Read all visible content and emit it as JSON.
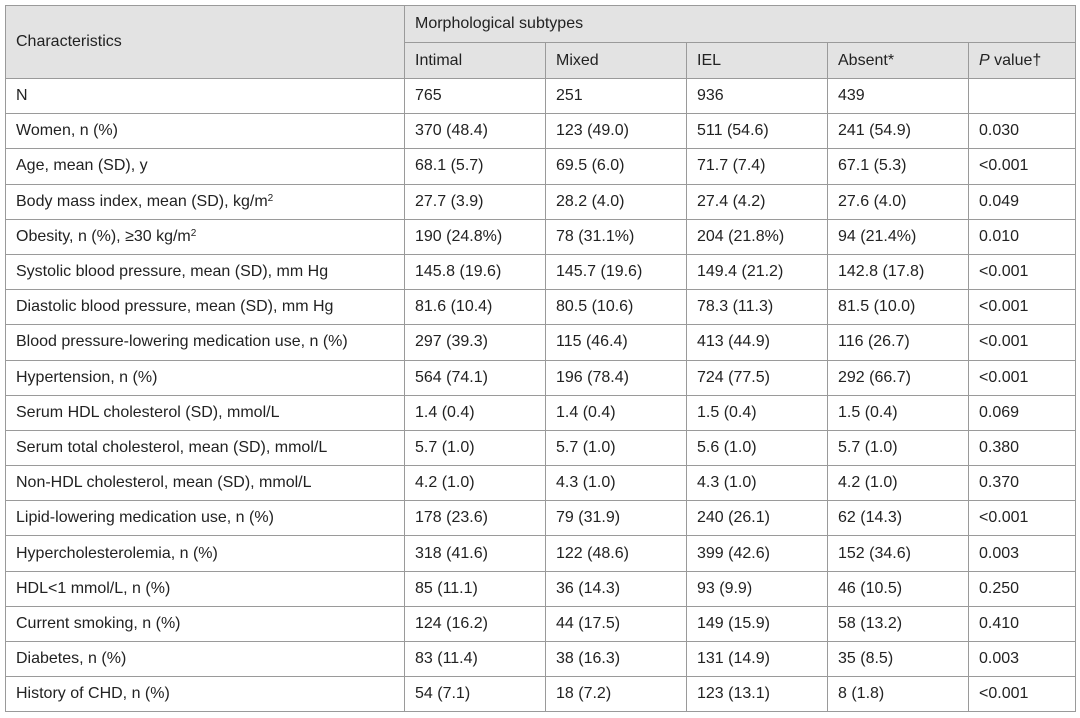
{
  "table": {
    "characteristics_header": "Characteristics",
    "group_header": "Morphological subtypes",
    "columns": {
      "intimal": "Intimal",
      "mixed": "Mixed",
      "iel": "IEL",
      "absent": "Absent*",
      "p_value_p": "P",
      "p_value_rest": " value†"
    },
    "rows": [
      {
        "label": "N",
        "label_sup": "",
        "intimal": "765",
        "mixed": "251",
        "iel": "936",
        "absent": "439",
        "p": ""
      },
      {
        "label": "Women, n (%)",
        "label_sup": "",
        "intimal": "370 (48.4)",
        "mixed": "123 (49.0)",
        "iel": "511 (54.6)",
        "absent": "241 (54.9)",
        "p": "0.030"
      },
      {
        "label": "Age, mean (SD), y",
        "label_sup": "",
        "intimal": "68.1 (5.7)",
        "mixed": "69.5 (6.0)",
        "iel": "71.7 (7.4)",
        "absent": "67.1 (5.3)",
        "p": "<0.001"
      },
      {
        "label": "Body mass index, mean (SD), kg/m",
        "label_sup": "2",
        "intimal": "27.7 (3.9)",
        "mixed": "28.2 (4.0)",
        "iel": "27.4 (4.2)",
        "absent": "27.6 (4.0)",
        "p": "0.049"
      },
      {
        "label": "Obesity, n (%), ≥30 kg/m",
        "label_sup": "2",
        "intimal": "190 (24.8%)",
        "mixed": "78 (31.1%)",
        "iel": "204 (21.8%)",
        "absent": "94 (21.4%)",
        "p": "0.010"
      },
      {
        "label": "Systolic blood pressure, mean (SD), mm Hg",
        "label_sup": "",
        "intimal": "145.8 (19.6)",
        "mixed": "145.7 (19.6)",
        "iel": "149.4 (21.2)",
        "absent": "142.8 (17.8)",
        "p": "<0.001"
      },
      {
        "label": "Diastolic blood pressure, mean (SD), mm Hg",
        "label_sup": "",
        "intimal": "81.6 (10.4)",
        "mixed": "80.5 (10.6)",
        "iel": "78.3 (11.3)",
        "absent": "81.5 (10.0)",
        "p": "<0.001"
      },
      {
        "label": "Blood pressure-lowering medication use, n (%)",
        "label_sup": "",
        "intimal": "297 (39.3)",
        "mixed": "115 (46.4)",
        "iel": "413 (44.9)",
        "absent": "116 (26.7)",
        "p": "<0.001"
      },
      {
        "label": "Hypertension, n (%)",
        "label_sup": "",
        "intimal": "564 (74.1)",
        "mixed": "196 (78.4)",
        "iel": "724 (77.5)",
        "absent": "292 (66.7)",
        "p": "<0.001"
      },
      {
        "label": "Serum HDL cholesterol (SD), mmol/L",
        "label_sup": "",
        "intimal": "1.4 (0.4)",
        "mixed": "1.4 (0.4)",
        "iel": "1.5 (0.4)",
        "absent": "1.5 (0.4)",
        "p": "0.069"
      },
      {
        "label": "Serum total cholesterol, mean (SD), mmol/L",
        "label_sup": "",
        "intimal": "5.7 (1.0)",
        "mixed": "5.7 (1.0)",
        "iel": "5.6 (1.0)",
        "absent": "5.7 (1.0)",
        "p": "0.380"
      },
      {
        "label": "Non-HDL cholesterol, mean (SD), mmol/L",
        "label_sup": "",
        "intimal": "4.2 (1.0)",
        "mixed": "4.3 (1.0)",
        "iel": "4.3 (1.0)",
        "absent": "4.2 (1.0)",
        "p": "0.370"
      },
      {
        "label": "Lipid-lowering medication use, n (%)",
        "label_sup": "",
        "intimal": "178 (23.6)",
        "mixed": "79 (31.9)",
        "iel": "240 (26.1)",
        "absent": "62 (14.3)",
        "p": "<0.001"
      },
      {
        "label": "Hypercholesterolemia, n (%)",
        "label_sup": "",
        "intimal": "318 (41.6)",
        "mixed": "122 (48.6)",
        "iel": "399 (42.6)",
        "absent": "152 (34.6)",
        "p": "0.003"
      },
      {
        "label": "HDL<1 mmol/L, n (%)",
        "label_sup": "",
        "intimal": "85 (11.1)",
        "mixed": "36 (14.3)",
        "iel": "93 (9.9)",
        "absent": "46 (10.5)",
        "p": "0.250"
      },
      {
        "label": "Current smoking, n (%)",
        "label_sup": "",
        "intimal": "124 (16.2)",
        "mixed": "44 (17.5)",
        "iel": "149 (15.9)",
        "absent": "58 (13.2)",
        "p": "0.410"
      },
      {
        "label": "Diabetes, n (%)",
        "label_sup": "",
        "intimal": "83 (11.4)",
        "mixed": "38 (16.3)",
        "iel": "131 (14.9)",
        "absent": "35 (8.5)",
        "p": "0.003"
      },
      {
        "label": "History of CHD, n (%)",
        "label_sup": "",
        "intimal": "54 (7.1)",
        "mixed": "18 (7.2)",
        "iel": "123 (13.1)",
        "absent": "8 (1.8)",
        "p": "<0.001"
      }
    ]
  }
}
